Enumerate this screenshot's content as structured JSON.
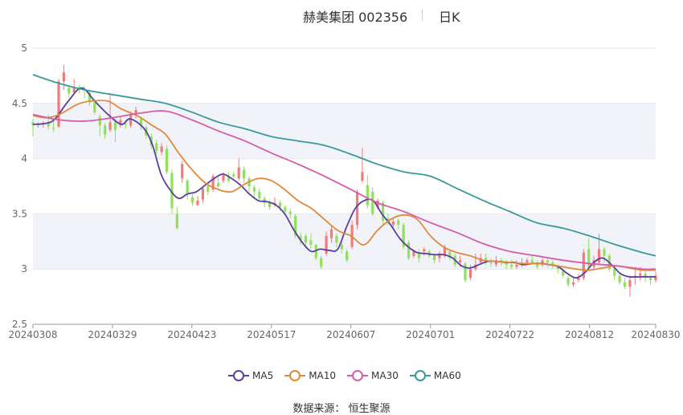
{
  "header": {
    "title": "赫美集团 002356",
    "period": "日K"
  },
  "source_text": "数据来源： 恒生聚源",
  "colors": {
    "up": "#f07b7b",
    "down": "#8fe05a",
    "band": "#f2f3f9",
    "grid": "#e6e6e6",
    "axis_text": "#666666"
  },
  "chart_data": {
    "type": "candlestick",
    "title": "赫美集团 002356",
    "ylim": [
      2.5,
      5
    ],
    "yticks": [
      "2.5",
      "3",
      "3.5",
      "4",
      "4.5",
      "5"
    ],
    "xticks": [
      "20240308",
      "20240329",
      "20240423",
      "20240517",
      "20240607",
      "20240701",
      "20240722",
      "20240812",
      "20240830"
    ],
    "n_days": 122,
    "candles": [
      [
        4.33,
        4.3,
        4.36,
        4.2
      ],
      [
        4.31,
        4.31,
        4.33,
        4.28
      ],
      [
        4.31,
        4.32,
        4.34,
        4.28
      ],
      [
        4.32,
        4.29,
        4.4,
        4.26
      ],
      [
        4.28,
        4.27,
        4.34,
        4.24
      ],
      [
        4.29,
        4.7,
        4.72,
        4.28
      ],
      [
        4.7,
        4.78,
        4.85,
        4.62
      ],
      [
        4.64,
        4.59,
        4.67,
        4.55
      ],
      [
        4.6,
        4.64,
        4.72,
        4.58
      ],
      [
        4.64,
        4.63,
        4.67,
        4.59
      ],
      [
        4.63,
        4.62,
        4.66,
        4.55
      ],
      [
        4.6,
        4.51,
        4.62,
        4.48
      ],
      [
        4.51,
        4.42,
        4.54,
        4.4
      ],
      [
        4.38,
        4.3,
        4.4,
        4.2
      ],
      [
        4.3,
        4.22,
        4.32,
        4.18
      ],
      [
        4.26,
        4.33,
        4.58,
        4.24
      ],
      [
        4.33,
        4.26,
        4.36,
        4.15
      ],
      [
        4.3,
        4.35,
        4.38,
        4.28
      ],
      [
        4.32,
        4.31,
        4.35,
        4.27
      ],
      [
        4.3,
        4.4,
        4.43,
        4.28
      ],
      [
        4.4,
        4.44,
        4.47,
        4.36
      ],
      [
        4.36,
        4.3,
        4.38,
        4.26
      ],
      [
        4.28,
        4.21,
        4.3,
        4.18
      ],
      [
        4.2,
        4.12,
        4.23,
        4.09
      ],
      [
        4.14,
        4.07,
        4.17,
        4.04
      ],
      [
        4.06,
        4.11,
        4.14,
        4.03
      ],
      [
        4.09,
        3.88,
        4.12,
        3.86
      ],
      [
        3.87,
        3.55,
        3.9,
        3.5
      ],
      [
        3.5,
        3.37,
        3.56,
        3.36
      ],
      [
        3.82,
        3.95,
        3.98,
        3.78
      ],
      [
        3.8,
        3.68,
        3.82,
        3.63
      ],
      [
        3.65,
        3.6,
        3.68,
        3.57
      ],
      [
        3.58,
        3.62,
        3.66,
        3.57
      ],
      [
        3.63,
        3.73,
        3.75,
        3.6
      ],
      [
        3.75,
        3.7,
        3.78,
        3.67
      ],
      [
        3.72,
        3.84,
        3.86,
        3.7
      ],
      [
        3.78,
        3.75,
        3.85,
        3.73
      ],
      [
        3.8,
        3.85,
        3.88,
        3.78
      ],
      [
        3.84,
        3.8,
        3.88,
        3.78
      ],
      [
        3.86,
        3.84,
        3.88,
        3.82
      ],
      [
        3.82,
        3.92,
        4.0,
        3.8
      ],
      [
        3.9,
        3.82,
        3.93,
        3.78
      ],
      [
        3.82,
        3.75,
        3.84,
        3.7
      ],
      [
        3.74,
        3.7,
        3.76,
        3.65
      ],
      [
        3.7,
        3.64,
        3.73,
        3.62
      ],
      [
        3.64,
        3.6,
        3.66,
        3.56
      ],
      [
        3.6,
        3.56,
        3.63,
        3.54
      ],
      [
        3.58,
        3.6,
        3.65,
        3.56
      ],
      [
        3.6,
        3.56,
        3.62,
        3.53
      ],
      [
        3.56,
        3.52,
        3.58,
        3.5
      ],
      [
        3.52,
        3.5,
        3.55,
        3.46
      ],
      [
        3.48,
        3.3,
        3.5,
        3.28
      ],
      [
        3.3,
        3.26,
        3.33,
        3.22
      ],
      [
        3.3,
        3.24,
        3.32,
        3.2
      ],
      [
        3.26,
        3.22,
        3.32,
        3.18
      ],
      [
        3.22,
        3.1,
        3.23,
        3.08
      ],
      [
        3.1,
        3.02,
        3.12,
        3.0
      ],
      [
        3.14,
        3.3,
        3.34,
        3.12
      ],
      [
        3.28,
        3.36,
        3.4,
        3.24
      ],
      [
        3.3,
        3.24,
        3.32,
        3.2
      ],
      [
        3.22,
        3.18,
        3.24,
        3.14
      ],
      [
        3.16,
        3.08,
        3.18,
        3.06
      ],
      [
        3.2,
        3.4,
        3.44,
        3.18
      ],
      [
        3.4,
        3.7,
        3.72,
        3.36
      ],
      [
        3.8,
        3.88,
        4.1,
        3.78
      ],
      [
        3.76,
        3.58,
        3.85,
        3.55
      ],
      [
        3.7,
        3.5,
        3.74,
        3.48
      ],
      [
        3.56,
        3.62,
        3.64,
        3.54
      ],
      [
        3.6,
        3.44,
        3.62,
        3.4
      ],
      [
        3.46,
        3.42,
        3.5,
        3.4
      ],
      [
        3.4,
        3.43,
        3.46,
        3.38
      ],
      [
        3.44,
        3.4,
        3.46,
        3.36
      ],
      [
        3.4,
        3.2,
        3.42,
        3.18
      ],
      [
        3.24,
        3.1,
        3.26,
        3.08
      ],
      [
        3.12,
        3.16,
        3.18,
        3.1
      ],
      [
        3.14,
        3.1,
        3.18,
        3.06
      ],
      [
        3.16,
        3.18,
        3.2,
        3.12
      ],
      [
        3.16,
        3.12,
        3.18,
        3.1
      ],
      [
        3.12,
        3.08,
        3.14,
        3.05
      ],
      [
        3.1,
        3.14,
        3.16,
        3.06
      ],
      [
        3.12,
        3.2,
        3.22,
        3.1
      ],
      [
        3.16,
        3.1,
        3.18,
        3.08
      ],
      [
        3.12,
        3.04,
        3.14,
        3.02
      ],
      [
        3.06,
        3.08,
        3.12,
        3.02
      ],
      [
        3.05,
        2.9,
        3.06,
        2.88
      ],
      [
        2.92,
        3.0,
        3.04,
        2.9
      ],
      [
        3.0,
        3.04,
        3.14,
        2.98
      ],
      [
        3.06,
        3.1,
        3.14,
        3.04
      ],
      [
        3.1,
        3.06,
        3.14,
        3.04
      ],
      [
        3.06,
        3.05,
        3.1,
        3.02
      ],
      [
        3.04,
        3.08,
        3.12,
        3.02
      ],
      [
        3.08,
        3.06,
        3.1,
        3.03
      ],
      [
        3.06,
        3.04,
        3.08,
        3.0
      ],
      [
        3.04,
        3.02,
        3.08,
        3.0
      ],
      [
        3.02,
        3.04,
        3.08,
        3.0
      ],
      [
        3.04,
        3.06,
        3.1,
        3.02
      ],
      [
        3.06,
        3.08,
        3.1,
        3.04
      ],
      [
        3.08,
        3.06,
        3.12,
        3.04
      ],
      [
        3.06,
        3.02,
        3.08,
        3.0
      ],
      [
        3.04,
        3.08,
        3.1,
        3.02
      ],
      [
        3.08,
        3.06,
        3.1,
        3.02
      ],
      [
        3.06,
        3.03,
        3.08,
        3.0
      ],
      [
        3.02,
        3.0,
        3.04,
        2.96
      ],
      [
        2.98,
        2.94,
        3.0,
        2.92
      ],
      [
        2.92,
        2.86,
        2.94,
        2.84
      ],
      [
        2.86,
        2.88,
        2.92,
        2.84
      ],
      [
        2.9,
        2.92,
        2.96,
        2.88
      ],
      [
        2.92,
        3.15,
        3.18,
        2.9
      ],
      [
        3.18,
        3.02,
        3.28,
        3.0
      ],
      [
        3.02,
        3.08,
        3.12,
        3.0
      ],
      [
        3.06,
        3.18,
        3.32,
        3.04
      ],
      [
        3.18,
        3.12,
        3.2,
        3.06
      ],
      [
        3.12,
        3.0,
        3.14,
        2.98
      ],
      [
        3.0,
        2.94,
        3.02,
        2.9
      ],
      [
        2.94,
        2.88,
        2.96,
        2.86
      ],
      [
        2.88,
        2.84,
        2.92,
        2.82
      ],
      [
        2.84,
        2.9,
        2.94,
        2.75
      ],
      [
        2.92,
        2.94,
        3.02,
        2.86
      ],
      [
        2.94,
        2.96,
        3.02,
        2.9
      ],
      [
        2.96,
        2.92,
        2.98,
        2.88
      ],
      [
        2.92,
        2.9,
        2.94,
        2.86
      ],
      [
        2.9,
        2.94,
        2.98,
        2.88
      ]
    ],
    "series": [
      {
        "name": "MA5",
        "color": "#5b3fa0"
      },
      {
        "name": "MA10",
        "color": "#e08a3c"
      },
      {
        "name": "MA30",
        "color": "#d45fa8"
      },
      {
        "name": "MA60",
        "color": "#3a9a9a"
      }
    ],
    "ma": {
      "MA5": [
        [
          0,
          4.31
        ],
        [
          3,
          4.32
        ],
        [
          5,
          4.36
        ],
        [
          8,
          4.52
        ],
        [
          11,
          4.64
        ],
        [
          14,
          4.52
        ],
        [
          17,
          4.4
        ],
        [
          20,
          4.31
        ],
        [
          22,
          4.36
        ],
        [
          25,
          4.28
        ],
        [
          27,
          4.13
        ],
        [
          29,
          3.86
        ],
        [
          31,
          3.72
        ],
        [
          33,
          3.64
        ],
        [
          35,
          3.68
        ],
        [
          37,
          3.7
        ],
        [
          39,
          3.76
        ],
        [
          41,
          3.82
        ],
        [
          43,
          3.86
        ],
        [
          45,
          3.82
        ],
        [
          47,
          3.76
        ],
        [
          49,
          3.68
        ],
        [
          51,
          3.62
        ],
        [
          53,
          3.61
        ],
        [
          55,
          3.58
        ],
        [
          57,
          3.5
        ],
        [
          59,
          3.36
        ],
        [
          61,
          3.24
        ],
        [
          63,
          3.16
        ],
        [
          65,
          3.18
        ],
        [
          67,
          3.17
        ],
        [
          69,
          3.18
        ],
        [
          71,
          3.38
        ],
        [
          73,
          3.55
        ],
        [
          75,
          3.62
        ],
        [
          77,
          3.62
        ],
        [
          79,
          3.5
        ],
        [
          81,
          3.4
        ],
        [
          83,
          3.28
        ],
        [
          85,
          3.2
        ],
        [
          87,
          3.15
        ],
        [
          89,
          3.14
        ],
        [
          91,
          3.13
        ],
        [
          93,
          3.13
        ],
        [
          95,
          3.1
        ],
        [
          97,
          3.03
        ],
        [
          99,
          3.01
        ],
        [
          101,
          3.04
        ],
        [
          103,
          3.07
        ],
        [
          105,
          3.07
        ],
        [
          107,
          3.06
        ],
        [
          109,
          3.06
        ],
        [
          111,
          3.04
        ],
        [
          113,
          3.05
        ],
        [
          115,
          3.05
        ],
        [
          117,
          3.04
        ],
        [
          119,
          3.02
        ],
        [
          121,
          2.96
        ],
        [
          123,
          2.92
        ],
        [
          125,
          2.97
        ],
        [
          127,
          3.06
        ],
        [
          129,
          3.1
        ],
        [
          131,
          3.04
        ],
        [
          133,
          2.96
        ],
        [
          135,
          2.93
        ],
        [
          138,
          2.93
        ],
        [
          141,
          2.93
        ]
      ],
      "MA10": [
        [
          0,
          4.39
        ],
        [
          3,
          4.37
        ],
        [
          6,
          4.4
        ],
        [
          10,
          4.49
        ],
        [
          13,
          4.52
        ],
        [
          17,
          4.52
        ],
        [
          20,
          4.45
        ],
        [
          24,
          4.38
        ],
        [
          27,
          4.3
        ],
        [
          30,
          4.22
        ],
        [
          33,
          4.05
        ],
        [
          36,
          3.9
        ],
        [
          39,
          3.78
        ],
        [
          42,
          3.72
        ],
        [
          45,
          3.7
        ],
        [
          48,
          3.77
        ],
        [
          51,
          3.82
        ],
        [
          54,
          3.8
        ],
        [
          57,
          3.72
        ],
        [
          60,
          3.62
        ],
        [
          63,
          3.55
        ],
        [
          66,
          3.45
        ],
        [
          69,
          3.35
        ],
        [
          72,
          3.3
        ],
        [
          75,
          3.22
        ],
        [
          78,
          3.35
        ],
        [
          81,
          3.45
        ],
        [
          84,
          3.49
        ],
        [
          87,
          3.45
        ],
        [
          90,
          3.3
        ],
        [
          93,
          3.2
        ],
        [
          96,
          3.15
        ],
        [
          99,
          3.12
        ],
        [
          102,
          3.08
        ],
        [
          105,
          3.07
        ],
        [
          108,
          3.06
        ],
        [
          111,
          3.05
        ],
        [
          114,
          3.05
        ],
        [
          117,
          3.04
        ],
        [
          120,
          3.02
        ],
        [
          123,
          3.0
        ],
        [
          126,
          2.99
        ],
        [
          129,
          3.01
        ],
        [
          132,
          3.03
        ],
        [
          135,
          3.01
        ],
        [
          138,
          2.99
        ],
        [
          141,
          2.99
        ]
      ],
      "MA30": [
        [
          0,
          4.4
        ],
        [
          6,
          4.35
        ],
        [
          12,
          4.34
        ],
        [
          18,
          4.37
        ],
        [
          24,
          4.41
        ],
        [
          30,
          4.43
        ],
        [
          36,
          4.35
        ],
        [
          42,
          4.25
        ],
        [
          48,
          4.16
        ],
        [
          54,
          4.05
        ],
        [
          60,
          3.95
        ],
        [
          66,
          3.84
        ],
        [
          72,
          3.72
        ],
        [
          78,
          3.6
        ],
        [
          84,
          3.52
        ],
        [
          90,
          3.42
        ],
        [
          96,
          3.33
        ],
        [
          102,
          3.23
        ],
        [
          108,
          3.16
        ],
        [
          114,
          3.12
        ],
        [
          120,
          3.08
        ],
        [
          126,
          3.05
        ],
        [
          132,
          3.03
        ],
        [
          138,
          3.0
        ],
        [
          141,
          3.0
        ]
      ],
      "MA60": [
        [
          0,
          4.76
        ],
        [
          6,
          4.68
        ],
        [
          12,
          4.62
        ],
        [
          18,
          4.58
        ],
        [
          24,
          4.54
        ],
        [
          30,
          4.5
        ],
        [
          36,
          4.42
        ],
        [
          42,
          4.33
        ],
        [
          48,
          4.27
        ],
        [
          54,
          4.2
        ],
        [
          60,
          4.16
        ],
        [
          66,
          4.12
        ],
        [
          72,
          4.04
        ],
        [
          78,
          3.95
        ],
        [
          84,
          3.88
        ],
        [
          90,
          3.84
        ],
        [
          96,
          3.73
        ],
        [
          102,
          3.62
        ],
        [
          108,
          3.52
        ],
        [
          114,
          3.42
        ],
        [
          120,
          3.37
        ],
        [
          126,
          3.3
        ],
        [
          132,
          3.22
        ],
        [
          138,
          3.15
        ],
        [
          141,
          3.12
        ]
      ]
    }
  }
}
